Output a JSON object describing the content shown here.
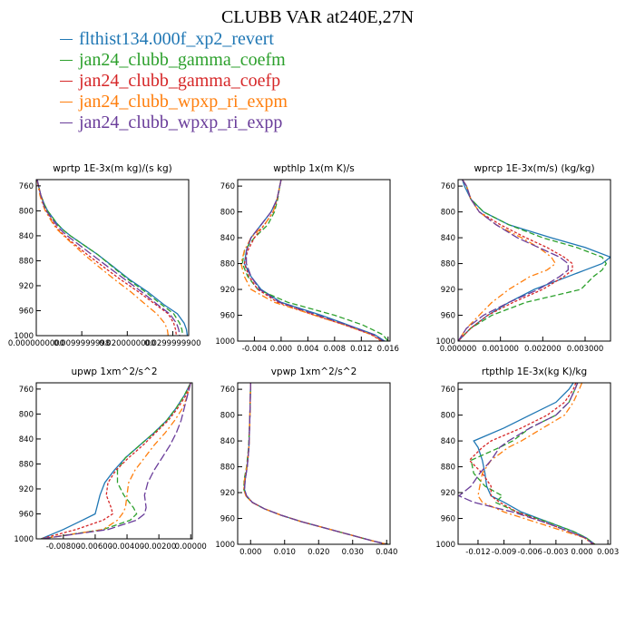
{
  "title": "CLUBB VAR at240E,27N",
  "colors": [
    "#1f77b4",
    "#2ca02c",
    "#d62728",
    "#ff7f0e",
    "#6a3d9a"
  ],
  "legend": [
    {
      "label": "flthist134.000f_xp2_revert",
      "color": "#1f77b4"
    },
    {
      "label": "jan24_clubb_gamma_coefm",
      "color": "#2ca02c"
    },
    {
      "label": "jan24_clubb_gamma_coefp",
      "color": "#d62728"
    },
    {
      "label": "jan24_clubb_wpxp_ri_expm",
      "color": "#ff7f0e"
    },
    {
      "label": "jan24_clubb_wpxp_ri_expp",
      "color": "#6a3d9a"
    }
  ],
  "chart_data": [
    {
      "type": "line",
      "title": "wprtp  1E-3x(m kg)/(s kg)",
      "xlim": [
        0,
        0.0335
      ],
      "ylim": [
        1000,
        750
      ],
      "xticks": [
        0,
        0.01,
        0.02,
        0.03
      ],
      "xtick_labels": [
        "0.0000000000",
        "0.0099999998",
        "0.0200000000",
        "0.0299999900"
      ],
      "yticks": [
        760,
        800,
        840,
        880,
        920,
        960,
        1000
      ],
      "y": [
        750,
        760,
        775,
        790,
        800,
        810,
        820,
        830,
        840,
        850,
        870,
        890,
        910,
        930,
        950,
        965,
        980,
        990,
        1000
      ],
      "series": [
        {
          "values": [
            0.0002,
            0.0005,
            0.001,
            0.0018,
            0.0025,
            0.0035,
            0.0045,
            0.0058,
            0.0075,
            0.0095,
            0.0135,
            0.017,
            0.0205,
            0.0245,
            0.028,
            0.031,
            0.0325,
            0.033,
            0.0332
          ]
        },
        {
          "values": [
            0.0002,
            0.0005,
            0.001,
            0.0018,
            0.0025,
            0.0035,
            0.0045,
            0.0058,
            0.0075,
            0.0095,
            0.0135,
            0.0168,
            0.0202,
            0.024,
            0.0275,
            0.0302,
            0.0315,
            0.032,
            0.0322
          ]
        },
        {
          "values": [
            0.0002,
            0.0005,
            0.001,
            0.0016,
            0.0022,
            0.003,
            0.0038,
            0.0048,
            0.0062,
            0.0078,
            0.0112,
            0.0148,
            0.0185,
            0.0225,
            0.0262,
            0.029,
            0.0302,
            0.0306,
            0.0308
          ]
        },
        {
          "values": [
            0.0002,
            0.0004,
            0.0008,
            0.0014,
            0.002,
            0.0028,
            0.0036,
            0.0046,
            0.006,
            0.0075,
            0.0105,
            0.0138,
            0.0172,
            0.0208,
            0.024,
            0.0265,
            0.0282,
            0.0288,
            0.029
          ]
        },
        {
          "values": [
            0.0002,
            0.0005,
            0.001,
            0.0016,
            0.0022,
            0.0032,
            0.0042,
            0.0053,
            0.0068,
            0.0086,
            0.0122,
            0.0158,
            0.0195,
            0.0232,
            0.0266,
            0.0293,
            0.0308,
            0.0313,
            0.0315
          ]
        }
      ]
    },
    {
      "type": "line",
      "title": "wpthlp  1x(m K)/s",
      "xlim": [
        -0.0065,
        0.0163
      ],
      "ylim": [
        1000,
        750
      ],
      "xticks": [
        -0.004,
        0,
        0.004,
        0.008,
        0.012,
        0.016
      ],
      "xtick_labels": [
        "-0.004",
        "0.000",
        "0.004",
        "0.008",
        "0.012",
        "0.016"
      ],
      "yticks": [
        760,
        800,
        840,
        880,
        920,
        960,
        1000
      ],
      "y": [
        750,
        760,
        780,
        800,
        820,
        840,
        860,
        880,
        900,
        920,
        940,
        960,
        975,
        990,
        1000
      ],
      "series": [
        {
          "values": [
            0.0,
            -0.0002,
            -0.0006,
            -0.0015,
            -0.003,
            -0.0045,
            -0.0052,
            -0.0055,
            -0.0045,
            -0.003,
            0.0,
            0.006,
            0.01,
            0.014,
            0.0155
          ]
        },
        {
          "values": [
            0.0,
            -0.0002,
            -0.0005,
            -0.001,
            -0.002,
            -0.004,
            -0.0055,
            -0.0058,
            -0.005,
            -0.0035,
            0.001,
            0.008,
            0.0122,
            0.0152,
            0.016
          ]
        },
        {
          "values": [
            0.0,
            -0.0002,
            -0.0006,
            -0.0012,
            -0.0025,
            -0.004,
            -0.005,
            -0.0055,
            -0.0048,
            -0.0035,
            -0.0005,
            0.005,
            0.0095,
            0.0135,
            0.015
          ]
        },
        {
          "values": [
            0.0,
            -0.0002,
            -0.0006,
            -0.0012,
            -0.0025,
            -0.0045,
            -0.0055,
            -0.006,
            -0.0055,
            -0.0045,
            -0.001,
            0.005,
            0.0095,
            0.0135,
            0.0152
          ]
        },
        {
          "values": [
            0.0,
            -0.0002,
            -0.0006,
            -0.0015,
            -0.003,
            -0.0045,
            -0.0052,
            -0.0052,
            -0.0045,
            -0.0032,
            -0.0002,
            0.0055,
            0.0098,
            0.0138,
            0.0153
          ]
        }
      ]
    },
    {
      "type": "line",
      "title": "wprcp  1E-3x(m/s) (kg/kg)",
      "xlim": [
        0,
        0.0036
      ],
      "ylim": [
        1000,
        750
      ],
      "xticks": [
        0,
        0.001,
        0.002,
        0.003
      ],
      "xtick_labels": [
        "0.000000",
        "0.001000",
        "0.002000",
        "0.003000"
      ],
      "yticks": [
        760,
        800,
        840,
        880,
        920,
        960,
        1000
      ],
      "y": [
        750,
        760,
        780,
        800,
        820,
        840,
        855,
        870,
        880,
        890,
        900,
        920,
        940,
        960,
        980,
        1000
      ],
      "series": [
        {
          "values": [
            0.0001,
            0.00015,
            0.0003,
            0.0006,
            0.0012,
            0.0022,
            0.003,
            0.0036,
            0.0034,
            0.003,
            0.0026,
            0.0018,
            0.0012,
            0.0007,
            0.0003,
            0.0
          ]
        },
        {
          "values": [
            0.0001,
            0.0002,
            0.0003,
            0.0006,
            0.0012,
            0.002,
            0.0028,
            0.0034,
            0.0035,
            0.0034,
            0.0032,
            0.0029,
            0.0016,
            0.0008,
            0.0003,
            0.0
          ]
        },
        {
          "values": [
            0.0001,
            0.0002,
            0.0003,
            0.0005,
            0.001,
            0.0016,
            0.0021,
            0.0025,
            0.0027,
            0.0027,
            0.0025,
            0.002,
            0.0013,
            0.0007,
            0.0003,
            0.0
          ]
        },
        {
          "values": [
            0.0001,
            0.0002,
            0.0003,
            0.0005,
            0.0009,
            0.0015,
            0.0019,
            0.0022,
            0.0023,
            0.0021,
            0.0017,
            0.0012,
            0.0008,
            0.0005,
            0.0002,
            0.0
          ]
        },
        {
          "values": [
            0.0001,
            0.0002,
            0.0003,
            0.0005,
            0.0009,
            0.0014,
            0.0019,
            0.0024,
            0.0026,
            0.0026,
            0.0024,
            0.0019,
            0.0012,
            0.0006,
            0.0002,
            0.0
          ]
        }
      ]
    },
    {
      "type": "line",
      "title": "upwp  1xm^2/s^2",
      "xlim": [
        -0.0097,
        0.0001
      ],
      "ylim": [
        1000,
        750
      ],
      "xticks": [
        -0.008,
        -0.006,
        -0.004,
        -0.002,
        0
      ],
      "xtick_labels": [
        "-0.00800",
        "-0.00600",
        "-0.00400",
        "-0.00200",
        "0.00000"
      ],
      "yticks": [
        760,
        800,
        840,
        880,
        920,
        960,
        1000
      ],
      "y": [
        750,
        770,
        790,
        810,
        830,
        850,
        870,
        890,
        910,
        930,
        950,
        960,
        970,
        985,
        1000
      ],
      "series": [
        {
          "values": [
            0.0,
            -0.0004,
            -0.0009,
            -0.0015,
            -0.0023,
            -0.0032,
            -0.0041,
            -0.0048,
            -0.0054,
            -0.0057,
            -0.0059,
            -0.006,
            -0.0068,
            -0.008,
            -0.0094
          ]
        },
        {
          "values": [
            0.0,
            -0.0004,
            -0.0009,
            -0.0015,
            -0.0023,
            -0.0032,
            -0.0041,
            -0.0046,
            -0.0046,
            -0.0042,
            -0.0036,
            -0.0034,
            -0.0038,
            -0.0055,
            -0.0094
          ]
        },
        {
          "values": [
            0.0,
            -0.0003,
            -0.0008,
            -0.0014,
            -0.0022,
            -0.003,
            -0.0039,
            -0.0047,
            -0.0052,
            -0.0053,
            -0.005,
            -0.0049,
            -0.0055,
            -0.0072,
            -0.0094
          ]
        },
        {
          "values": [
            0.0,
            -0.0002,
            -0.0005,
            -0.001,
            -0.0016,
            -0.0023,
            -0.0029,
            -0.0035,
            -0.0039,
            -0.004,
            -0.0041,
            -0.0043,
            -0.0046,
            -0.0055,
            -0.0094
          ]
        },
        {
          "values": [
            0.0,
            -0.0002,
            -0.0004,
            -0.0006,
            -0.0009,
            -0.0013,
            -0.0018,
            -0.0023,
            -0.0027,
            -0.0029,
            -0.0028,
            -0.0029,
            -0.0034,
            -0.0052,
            -0.0094
          ]
        }
      ]
    },
    {
      "type": "line",
      "title": "vpwp  1xm^2/s^2",
      "xlim": [
        -0.0038,
        0.041
      ],
      "ylim": [
        1000,
        750
      ],
      "xticks": [
        0,
        0.01,
        0.02,
        0.03,
        0.04
      ],
      "xtick_labels": [
        "0.000",
        "0.010",
        "0.020",
        "0.030",
        "0.040"
      ],
      "yticks": [
        760,
        800,
        840,
        880,
        920,
        960,
        1000
      ],
      "y": [
        750,
        800,
        850,
        880,
        900,
        915,
        925,
        935,
        945,
        955,
        965,
        975,
        985,
        995,
        1000
      ],
      "series": [
        {
          "values": [
            0.0,
            -0.0002,
            -0.0005,
            -0.001,
            -0.0016,
            -0.0018,
            -0.0012,
            0.0005,
            0.004,
            0.009,
            0.015,
            0.022,
            0.029,
            0.036,
            0.04
          ]
        },
        {
          "values": [
            0.0,
            -0.0002,
            -0.0006,
            -0.0012,
            -0.0019,
            -0.002,
            -0.0014,
            0.0004,
            0.004,
            0.009,
            0.015,
            0.022,
            0.029,
            0.036,
            0.0405
          ]
        },
        {
          "values": [
            0.0,
            -0.0002,
            -0.0005,
            -0.001,
            -0.0017,
            -0.0019,
            -0.0013,
            0.0004,
            0.004,
            0.009,
            0.015,
            0.022,
            0.029,
            0.036,
            0.04
          ]
        },
        {
          "values": [
            0.0,
            -0.0002,
            -0.0005,
            -0.0011,
            -0.0018,
            -0.002,
            -0.0014,
            0.0004,
            0.004,
            0.009,
            0.015,
            0.022,
            0.029,
            0.036,
            0.0402
          ]
        },
        {
          "values": [
            0.0,
            -0.0002,
            -0.0005,
            -0.001,
            -0.0016,
            -0.0018,
            -0.0012,
            0.0005,
            0.004,
            0.009,
            0.015,
            0.022,
            0.029,
            0.036,
            0.0401
          ]
        }
      ]
    },
    {
      "type": "line",
      "title": "rtpthlp  1E-3x(kg K)/kg",
      "xlim": [
        -0.0143,
        0.0033
      ],
      "ylim": [
        1000,
        750
      ],
      "xticks": [
        -0.012,
        -0.009,
        -0.006,
        -0.003,
        0,
        0.003
      ],
      "xtick_labels": [
        "-0.012",
        "-0.009",
        "-0.006",
        "-0.003",
        "0.000",
        "0.003"
      ],
      "yticks": [
        760,
        800,
        840,
        880,
        920,
        960,
        1000
      ],
      "y": [
        750,
        760,
        780,
        800,
        820,
        840,
        850,
        870,
        890,
        910,
        925,
        935,
        950,
        965,
        980,
        990,
        1000
      ],
      "series": [
        {
          "values": [
            -0.001,
            -0.0015,
            -0.003,
            -0.006,
            -0.009,
            -0.0125,
            -0.012,
            -0.0115,
            -0.0112,
            -0.011,
            -0.0105,
            -0.009,
            -0.007,
            -0.004,
            -0.001,
            0.0005,
            0.0015
          ]
        },
        {
          "values": [
            -0.0005,
            -0.0008,
            -0.0015,
            -0.003,
            -0.006,
            -0.008,
            -0.0095,
            -0.0128,
            -0.0125,
            -0.0112,
            -0.0092,
            -0.01,
            -0.0075,
            -0.004,
            -0.001,
            0.0005,
            0.0015
          ]
        },
        {
          "values": [
            -0.0007,
            -0.001,
            -0.002,
            -0.004,
            -0.007,
            -0.0105,
            -0.0115,
            -0.013,
            -0.0115,
            -0.0105,
            -0.0105,
            -0.0095,
            -0.0075,
            -0.0045,
            -0.0015,
            0.0003,
            0.0014
          ]
        },
        {
          "values": [
            0.0,
            -0.0003,
            -0.001,
            -0.002,
            -0.0045,
            -0.007,
            -0.0085,
            -0.0105,
            -0.0115,
            -0.0118,
            -0.012,
            -0.0115,
            -0.009,
            -0.0055,
            -0.002,
            0.0003,
            0.0012
          ]
        },
        {
          "values": [
            -0.0005,
            -0.0008,
            -0.0015,
            -0.003,
            -0.006,
            -0.0085,
            -0.0095,
            -0.0105,
            -0.0118,
            -0.0128,
            -0.0142,
            -0.0125,
            -0.008,
            -0.0045,
            -0.0015,
            0.0004,
            0.0013
          ]
        }
      ]
    }
  ]
}
